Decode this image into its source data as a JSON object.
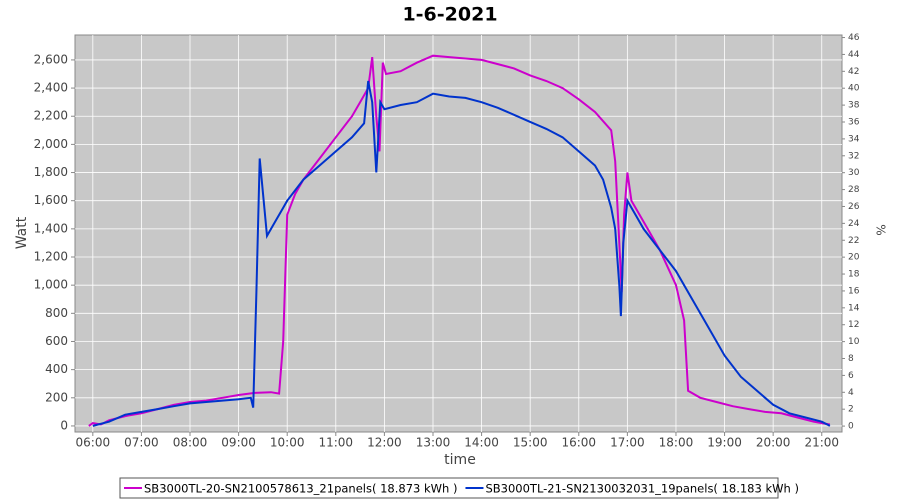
{
  "chart_data": {
    "type": "line",
    "title": "1-6-2021",
    "xlabel": "time",
    "ylabel": "Watt",
    "y2label": "%",
    "xlim": [
      "05:38",
      "21:25"
    ],
    "xticks": [
      "06:00",
      "07:00",
      "08:00",
      "09:00",
      "10:00",
      "11:00",
      "12:00",
      "13:00",
      "14:00",
      "15:00",
      "16:00",
      "17:00",
      "18:00",
      "19:00",
      "20:00",
      "21:00"
    ],
    "ylim": [
      -43,
      2777
    ],
    "yticks": [
      0,
      200,
      400,
      600,
      800,
      {
        "value": 1000,
        "label": "1,000"
      },
      {
        "value": 1200,
        "label": "1,200"
      },
      {
        "value": 1400,
        "label": "1,400"
      },
      {
        "value": 1600,
        "label": "1,600"
      },
      {
        "value": 1800,
        "label": "1,800"
      },
      {
        "value": 2000,
        "label": "2,000"
      },
      {
        "value": 2200,
        "label": "2,200"
      },
      {
        "value": 2400,
        "label": "2,400"
      },
      {
        "value": 2600,
        "label": "2,600"
      }
    ],
    "y2lim": [
      -0.7,
      46.3
    ],
    "y2ticks": [
      0,
      2,
      4,
      6,
      8,
      10,
      12,
      14,
      16,
      18,
      20,
      22,
      24,
      26,
      28,
      30,
      32,
      34,
      36,
      38,
      40,
      42,
      44,
      46
    ],
    "grid": true,
    "series": [
      {
        "name": "SB3000TL-20-SN2100578613_21panels( 18.873 kWh )",
        "color": "#cc00cc",
        "x": [
          "05:55",
          "06:00",
          "06:10",
          "06:20",
          "06:40",
          "07:00",
          "07:20",
          "07:40",
          "08:00",
          "08:20",
          "08:40",
          "09:00",
          "09:20",
          "09:40",
          "09:50",
          "09:55",
          "10:00",
          "10:10",
          "10:20",
          "10:40",
          "11:00",
          "11:20",
          "11:30",
          "11:40",
          "11:45",
          "11:50",
          "11:54",
          "11:58",
          "12:02",
          "12:20",
          "12:40",
          "13:00",
          "13:20",
          "13:40",
          "14:00",
          "14:20",
          "14:40",
          "15:00",
          "15:20",
          "15:40",
          "16:00",
          "16:20",
          "16:40",
          "16:45",
          "16:50",
          "16:53",
          "16:56",
          "17:00",
          "17:05",
          "17:20",
          "17:40",
          "18:00",
          "18:10",
          "18:15",
          "18:30",
          "18:50",
          "19:10",
          "19:30",
          "19:50",
          "20:10",
          "20:30",
          "20:50",
          "21:00",
          "21:10"
        ],
        "values": [
          0,
          20,
          10,
          40,
          70,
          90,
          120,
          150,
          170,
          180,
          200,
          220,
          235,
          240,
          230,
          600,
          1500,
          1650,
          1750,
          1900,
          2050,
          2200,
          2300,
          2400,
          2620,
          2200,
          1950,
          2580,
          2500,
          2520,
          2580,
          2630,
          2620,
          2610,
          2600,
          2570,
          2540,
          2490,
          2450,
          2400,
          2320,
          2230,
          2100,
          1880,
          1300,
          950,
          1500,
          1800,
          1600,
          1450,
          1250,
          1000,
          750,
          250,
          200,
          170,
          140,
          120,
          100,
          90,
          60,
          30,
          20,
          10
        ]
      },
      {
        "name": "SB3000TL-21-SN2130032031_19panels( 18.183 kWh )",
        "color": "#0033cc",
        "x": [
          "06:00",
          "06:20",
          "06:40",
          "07:00",
          "07:20",
          "07:40",
          "08:00",
          "08:20",
          "08:40",
          "09:00",
          "09:15",
          "09:18",
          "09:22",
          "09:26",
          "09:35",
          "09:45",
          "09:55",
          "10:00",
          "10:20",
          "10:40",
          "11:00",
          "11:20",
          "11:35",
          "11:40",
          "11:45",
          "11:50",
          "11:55",
          "12:00",
          "12:20",
          "12:40",
          "13:00",
          "13:20",
          "13:40",
          "14:00",
          "14:20",
          "14:40",
          "15:00",
          "15:20",
          "15:40",
          "16:00",
          "16:20",
          "16:30",
          "16:40",
          "16:45",
          "16:50",
          "16:52",
          "16:55",
          "17:00",
          "17:10",
          "17:20",
          "17:40",
          "18:00",
          "18:20",
          "18:40",
          "19:00",
          "19:20",
          "19:40",
          "20:00",
          "20:20",
          "20:40",
          "21:00",
          "21:10"
        ],
        "values": [
          0,
          30,
          80,
          100,
          120,
          140,
          160,
          170,
          180,
          190,
          200,
          130,
          950,
          1900,
          1350,
          1450,
          1550,
          1600,
          1750,
          1850,
          1950,
          2050,
          2150,
          2450,
          2300,
          1800,
          2300,
          2250,
          2280,
          2300,
          2360,
          2340,
          2330,
          2300,
          2260,
          2210,
          2160,
          2110,
          2050,
          1950,
          1850,
          1750,
          1550,
          1400,
          1000,
          780,
          1300,
          1600,
          1500,
          1400,
          1250,
          1100,
          900,
          700,
          500,
          350,
          250,
          150,
          90,
          60,
          30,
          0
        ]
      }
    ]
  }
}
